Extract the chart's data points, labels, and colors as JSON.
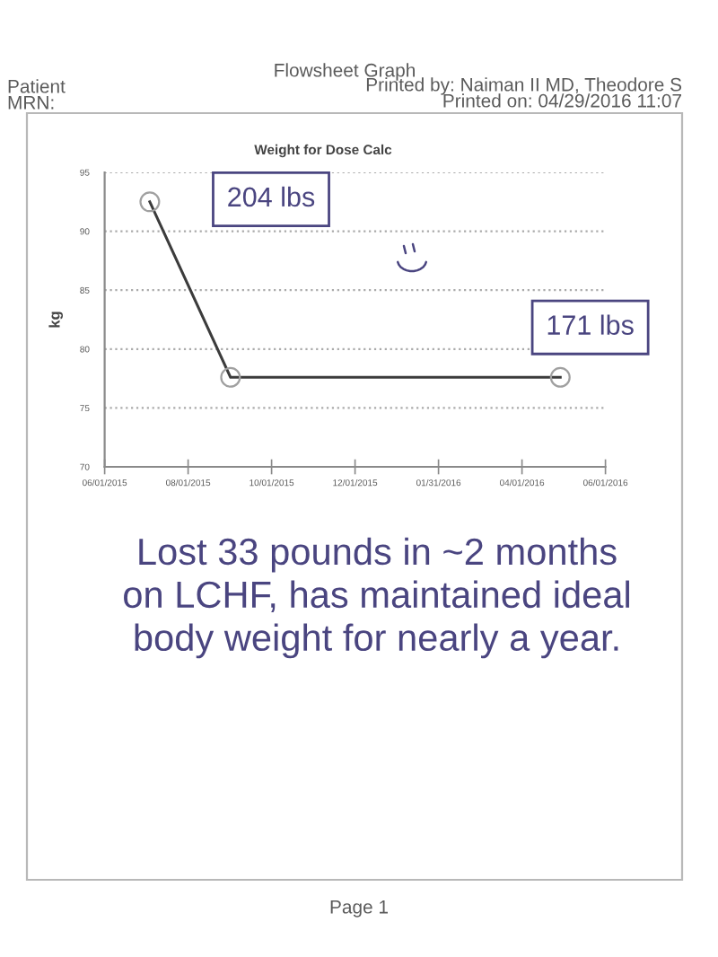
{
  "chart_data": {
    "type": "line",
    "title": "Weight for Dose Calc",
    "ylabel": "kg",
    "x": [
      "2015-07-04",
      "2015-09-01",
      "2016-04-29"
    ],
    "values": [
      92.5,
      77.6,
      77.6
    ],
    "color": "#3c3c3c",
    "marker": "circle",
    "line_style": "solid",
    "xlim": [
      "2015-06-01",
      "2016-06-01"
    ],
    "xticks": [
      {
        "value": "2015-06-01",
        "label": "06/01/2015"
      },
      {
        "value": "2015-08-01",
        "label": "08/01/2015"
      },
      {
        "value": "2015-10-01",
        "label": "10/01/2015"
      },
      {
        "value": "2015-12-01",
        "label": "12/01/2015"
      },
      {
        "value": "2016-01-31",
        "label": "01/31/2016"
      },
      {
        "value": "2016-04-01",
        "label": "04/01/2016"
      },
      {
        "value": "2016-06-01",
        "label": "06/01/2016"
      }
    ],
    "ylim": [
      70,
      95
    ],
    "yticks": [
      70,
      75,
      80,
      85,
      90,
      95
    ],
    "grid": "y",
    "annotations": [
      "Flowsheet Graph",
      "Patient",
      "Printed by: Naiman II MD, Theodore S",
      "MRN:",
      "Printed on: 04/29/2016 11:07",
      "204 lbs",
      {
        "text": "171 lbs",
        "x": "2016-04-29",
        "y": 77.6
      },
      "Lost 33 pounds in ~2 months\non LCHF, has maintained ideal\nbody weight for nearly a year.",
      "Page 1"
    ]
  }
}
